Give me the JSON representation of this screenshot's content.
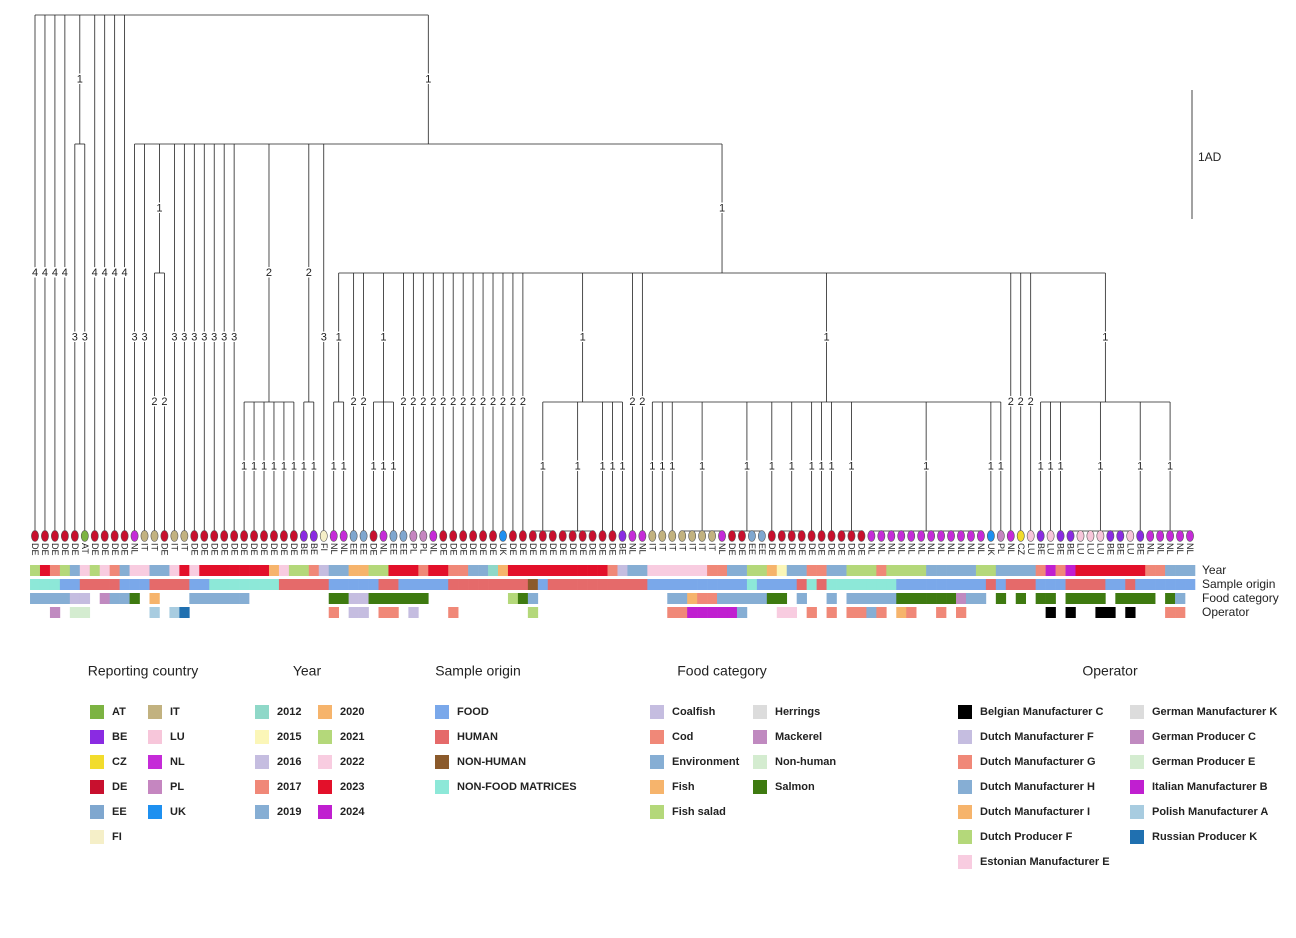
{
  "scale_bar": {
    "value": 1,
    "label": "1AD"
  },
  "leaves": [
    "DE",
    "DE",
    "DE",
    "DE",
    "DE",
    "AT",
    "DE",
    "DE",
    "DE",
    "DE",
    "NL",
    "IT",
    "IT",
    "DE",
    "IT",
    "IT",
    "DE",
    "DE",
    "DE",
    "DE",
    "DE",
    "DE",
    "DE",
    "DE",
    "DE",
    "DE",
    "DE",
    "BE",
    "BE",
    "FI",
    "NL",
    "NL",
    "EE",
    "EE",
    "DE",
    "NL",
    "EE",
    "EE",
    "PL",
    "PL",
    "NL",
    "DE",
    "DE",
    "DE",
    "DE",
    "DE",
    "DE",
    "UK",
    "DE",
    "DE",
    "DE",
    "DE",
    "DE",
    "DE",
    "DE",
    "DE",
    "DE",
    "DE",
    "DE",
    "BE",
    "NL",
    "NL",
    "IT",
    "IT",
    "IT",
    "IT",
    "IT",
    "IT",
    "IT",
    "NL",
    "DE",
    "DE",
    "EE",
    "EE",
    "DE",
    "DE",
    "DE",
    "DE",
    "DE",
    "DE",
    "DE",
    "DE",
    "DE",
    "DE",
    "NL",
    "NL",
    "NL",
    "NL",
    "NL",
    "NL",
    "NL",
    "NL",
    "NL",
    "NL",
    "NL",
    "NL",
    "UK",
    "PL",
    "NL",
    "CZ",
    "LU",
    "BE",
    "LU",
    "BE",
    "BE",
    "LU",
    "LU",
    "LU",
    "BE",
    "BE",
    "LU",
    "BE",
    "NL",
    "NL",
    "NL",
    "NL",
    "NL"
  ],
  "tree": {
    "h": 4,
    "children": [
      {
        "leaf": 0,
        "label": "4"
      },
      {
        "leaf": 1,
        "label": "4"
      },
      {
        "leaf": 2,
        "label": "4"
      },
      {
        "leaf": 3,
        "label": "4"
      },
      {
        "h": 3,
        "label": "1",
        "children": [
          {
            "leaf": 4,
            "label": "3"
          },
          {
            "leaf": 5,
            "label": "3"
          }
        ]
      },
      {
        "leaf": 6,
        "label": "4"
      },
      {
        "leaf": 7,
        "label": "4"
      },
      {
        "leaf": 8,
        "label": "4"
      },
      {
        "leaf": 9,
        "label": "4"
      },
      {
        "h": 3,
        "label": "1",
        "children": [
          {
            "leaf": 10,
            "label": "3"
          },
          {
            "leaf": 11,
            "label": "3"
          },
          {
            "h": 2,
            "label": "1",
            "children": [
              {
                "leaf": 12,
                "label": "2"
              },
              {
                "leaf": 13,
                "label": "2"
              }
            ]
          },
          {
            "leaf": 14,
            "label": "3"
          },
          {
            "leaf": 15,
            "label": "3"
          },
          {
            "leaf": 16,
            "label": "3"
          },
          {
            "leaf": 17,
            "label": "3"
          },
          {
            "leaf": 18,
            "label": "3"
          },
          {
            "leaf": 19,
            "label": "3"
          },
          {
            "leaf": 20,
            "label": "3"
          },
          {
            "h": 1,
            "label": "2",
            "children": [
              {
                "leaf": 21,
                "label": "1"
              },
              {
                "leaf": 22,
                "label": "1"
              },
              {
                "leaf": 23,
                "label": "1"
              },
              {
                "leaf": 24,
                "label": "1"
              },
              {
                "leaf": 25,
                "label": "1"
              },
              {
                "leaf": 26,
                "label": "1"
              }
            ]
          },
          {
            "h": 1,
            "label": "2",
            "children": [
              {
                "leaf": 27,
                "label": "1"
              },
              {
                "leaf": 28,
                "label": "1"
              }
            ]
          },
          {
            "leaf": 29,
            "label": "3"
          },
          {
            "h": 2,
            "label": "1",
            "children": [
              {
                "h": 1,
                "label": "1",
                "children": [
                  {
                    "leaf": 30,
                    "label": "1"
                  },
                  {
                    "leaf": 31,
                    "label": "1"
                  }
                ]
              },
              {
                "leaf": 32,
                "label": "2"
              },
              {
                "leaf": 33,
                "label": "2"
              },
              {
                "h": 1,
                "label": "1",
                "children": [
                  {
                    "leaf": 34,
                    "label": "1"
                  },
                  {
                    "leaf": 35,
                    "label": "1"
                  },
                  {
                    "leaf": 36,
                    "label": "1"
                  }
                ]
              },
              {
                "leaf": 37,
                "label": "2"
              },
              {
                "leaf": 38,
                "label": "2"
              },
              {
                "leaf": 39,
                "label": "2"
              },
              {
                "leaf": 40,
                "label": "2"
              },
              {
                "leaf": 41,
                "label": "2"
              },
              {
                "leaf": 42,
                "label": "2"
              },
              {
                "leaf": 43,
                "label": "2"
              },
              {
                "leaf": 44,
                "label": "2"
              },
              {
                "leaf": 45,
                "label": "2"
              },
              {
                "leaf": 46,
                "label": "2"
              },
              {
                "leaf": 47,
                "label": "2"
              },
              {
                "leaf": 48,
                "label": "2"
              },
              {
                "leaf": 49,
                "label": "2"
              },
              {
                "h": 1,
                "label": "1",
                "children": [
                  {
                    "h": 0,
                    "label": "1",
                    "children": [
                      {
                        "leaf": 50
                      },
                      {
                        "leaf": 51
                      },
                      {
                        "leaf": 52
                      }
                    ]
                  },
                  {
                    "h": 0,
                    "label": "1",
                    "children": [
                      {
                        "leaf": 53
                      },
                      {
                        "leaf": 54
                      },
                      {
                        "leaf": 55
                      },
                      {
                        "leaf": 56
                      }
                    ]
                  },
                  {
                    "leaf": 57,
                    "label": "1"
                  },
                  {
                    "leaf": 58,
                    "label": "1"
                  },
                  {
                    "leaf": 59,
                    "label": "1"
                  }
                ]
              },
              {
                "leaf": 60,
                "label": "2"
              },
              {
                "leaf": 61,
                "label": "2"
              },
              {
                "h": 1,
                "label": "1",
                "children": [
                  {
                    "leaf": 62,
                    "label": "1"
                  },
                  {
                    "leaf": 63,
                    "label": "1"
                  },
                  {
                    "leaf": 64,
                    "label": "1"
                  },
                  {
                    "h": 0,
                    "label": "1",
                    "children": [
                      {
                        "leaf": 65
                      },
                      {
                        "leaf": 66
                      },
                      {
                        "leaf": 67
                      },
                      {
                        "leaf": 68
                      },
                      {
                        "leaf": 69
                      }
                    ]
                  },
                  {
                    "h": 0,
                    "label": "1",
                    "children": [
                      {
                        "leaf": 70
                      },
                      {
                        "leaf": 71
                      },
                      {
                        "leaf": 72
                      },
                      {
                        "leaf": 73
                      }
                    ]
                  },
                  {
                    "leaf": 74,
                    "label": "1"
                  },
                  {
                    "h": 0,
                    "label": "1",
                    "children": [
                      {
                        "leaf": 75
                      },
                      {
                        "leaf": 76
                      },
                      {
                        "leaf": 77
                      }
                    ]
                  },
                  {
                    "leaf": 78,
                    "label": "1"
                  },
                  {
                    "leaf": 79,
                    "label": "1"
                  },
                  {
                    "leaf": 80,
                    "label": "1"
                  },
                  {
                    "h": 0,
                    "label": "1",
                    "children": [
                      {
                        "leaf": 81
                      },
                      {
                        "leaf": 82
                      },
                      {
                        "leaf": 83
                      }
                    ]
                  },
                  {
                    "h": 0,
                    "label": "1",
                    "children": [
                      {
                        "leaf": 84
                      },
                      {
                        "leaf": 85
                      },
                      {
                        "leaf": 86
                      },
                      {
                        "leaf": 87
                      },
                      {
                        "leaf": 88
                      },
                      {
                        "leaf": 89
                      },
                      {
                        "leaf": 90
                      },
                      {
                        "leaf": 91
                      },
                      {
                        "leaf": 92
                      },
                      {
                        "leaf": 93
                      },
                      {
                        "leaf": 94
                      },
                      {
                        "leaf": 95
                      }
                    ]
                  },
                  {
                    "leaf": 96,
                    "label": "1"
                  },
                  {
                    "leaf": 97,
                    "label": "1"
                  }
                ]
              },
              {
                "leaf": 98,
                "label": "2"
              },
              {
                "leaf": 99,
                "label": "2"
              },
              {
                "leaf": 100,
                "label": "2"
              },
              {
                "h": 1,
                "label": "1",
                "children": [
                  {
                    "leaf": 101,
                    "label": "1"
                  },
                  {
                    "leaf": 102,
                    "label": "1"
                  },
                  {
                    "leaf": 103,
                    "label": "1"
                  },
                  {
                    "h": 0,
                    "label": "1",
                    "children": [
                      {
                        "leaf": 104
                      },
                      {
                        "leaf": 105
                      },
                      {
                        "leaf": 106
                      },
                      {
                        "leaf": 107
                      },
                      {
                        "leaf": 108
                      },
                      {
                        "leaf": 109
                      },
                      {
                        "leaf": 110
                      }
                    ]
                  },
                  {
                    "leaf": 111,
                    "label": "1"
                  },
                  {
                    "h": 0,
                    "label": "1",
                    "children": [
                      {
                        "leaf": 112
                      },
                      {
                        "leaf": 113
                      },
                      {
                        "leaf": 114
                      },
                      {
                        "leaf": 115
                      },
                      {
                        "leaf": 116
                      }
                    ]
                  }
                ]
              }
            ]
          }
        ]
      }
    ]
  },
  "legends": [
    {
      "title": "Reporting country",
      "items": [
        {
          "label": "AT",
          "color": "#7cb342"
        },
        {
          "label": "BE",
          "color": "#8a2be2"
        },
        {
          "label": "CZ",
          "color": "#f2dc2c"
        },
        {
          "label": "DE",
          "color": "#c8102e"
        },
        {
          "label": "EE",
          "color": "#7fa7cf"
        },
        {
          "label": "FI",
          "color": "#f5efc8"
        },
        {
          "label": "IT",
          "color": "#c2b280"
        },
        {
          "label": "LU",
          "color": "#f7c6da"
        },
        {
          "label": "NL",
          "color": "#c52bd8"
        },
        {
          "label": "PL",
          "color": "#c586c0"
        },
        {
          "label": "UK",
          "color": "#1e90f0"
        }
      ]
    },
    {
      "title": "Year",
      "cells": "683647673477447878888888576632445566888388334405888888888832447777773344665144334466636666444446644443939888888833444",
      "items": [
        {
          "label": "2012",
          "color": "#8fd8c8"
        },
        {
          "label": "2015",
          "color": "#fbf6b8"
        },
        {
          "label": "2016",
          "color": "#c5bde0"
        },
        {
          "label": "2017",
          "color": "#f08878"
        },
        {
          "label": "2019",
          "color": "#86aed4"
        },
        {
          "label": "2020",
          "color": "#f6b46c"
        },
        {
          "label": "2021",
          "color": "#b4d87a"
        },
        {
          "label": "2022",
          "color": "#f8cce0"
        },
        {
          "label": "2023",
          "color": "#e3102a"
        },
        {
          "label": "2024",
          "color": "#c01fd0"
        }
      ]
    },
    {
      "title": "Sample origin",
      "cells": "333001111000111100333333311111000001100000111111112011111111110000000000300001313333333000000000101110001111001000000",
      "items": [
        {
          "label": "FOOD",
          "color": "#7aa8ea"
        },
        {
          "label": "HUMAN",
          "color": "#e56a6a"
        },
        {
          "label": "NON-HUMAN",
          "color": "#8b5a2b"
        },
        {
          "label": "NON-FOOD MATRICES",
          "color": "#8de8d8"
        }
      ]
    },
    {
      "title": "Food category",
      "cells": "222200.6228.3...222222........8800888888........482.........  ..223112222288.2..2.22222888888622.8.8.88.8888.8888.82.8.",
      "items": [
        {
          "label": "Coalfish",
          "color": "#c5bde0"
        },
        {
          "label": "Cod",
          "color": "#f08878"
        },
        {
          "label": "Environment",
          "color": "#86aed4"
        },
        {
          "label": "Fish",
          "color": "#f6b46c"
        },
        {
          "label": "Fish salad",
          "color": "#b4d87a"
        },
        {
          "label": "Herrings",
          "color": "#dcdcdc"
        },
        {
          "label": "Mackerel",
          "color": "#c08ac0"
        },
        {
          "label": "Non-human",
          "color": "#d4ecd0"
        },
        {
          "label": "Salmon",
          "color": "#3e7a10"
        }
      ]
    },
    {
      "title": "Operator",
      "cells": "..8.99......b.bc..............2.11.22.1...2.......5.............22aaaaa3...66.2.2.2232.42..2.2........0.0..00.0...22.2.",
      "items": [
        {
          "label": "Belgian Manufacturer C",
          "color": "#000000"
        },
        {
          "label": "Dutch Manufacturer F",
          "color": "#c5bde0"
        },
        {
          "label": "Dutch Manufacturer G",
          "color": "#f08878"
        },
        {
          "label": "Dutch Manufacturer H",
          "color": "#86aed4"
        },
        {
          "label": "Dutch Manufacturer I",
          "color": "#f6b46c"
        },
        {
          "label": "Dutch Producer F",
          "color": "#b4d87a"
        },
        {
          "label": "Estonian Manufacturer E",
          "color": "#f8cce0"
        },
        {
          "label": "German Manufacturer K",
          "color": "#dcdcdc"
        },
        {
          "label": "German Producer C",
          "color": "#c08ac0"
        },
        {
          "label": "German Producer E",
          "color": "#d4ecd0"
        },
        {
          "label": "Italian Manufacturer B",
          "color": "#c01fd0"
        },
        {
          "label": "Polish Manufacturer A",
          "color": "#a8cce0"
        },
        {
          "label": "Russian Producer K",
          "color": "#2070b0"
        }
      ]
    }
  ]
}
